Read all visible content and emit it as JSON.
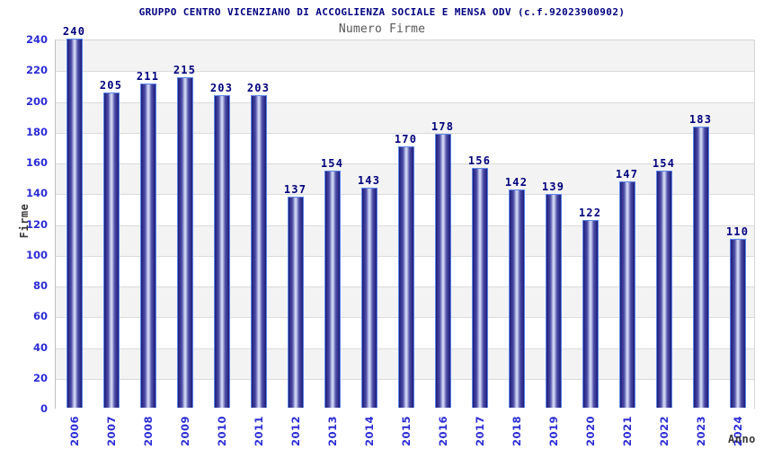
{
  "chart_data": {
    "type": "bar",
    "title": "GRUPPO CENTRO VICENZIANO DI ACCOGLIENZA SOCIALE E MENSA ODV (c.f.92023900902)",
    "subtitle": "Numero Firme",
    "xlabel": "Anno",
    "ylabel": "Firme",
    "categories": [
      "2006",
      "2007",
      "2008",
      "2009",
      "2010",
      "2011",
      "2012",
      "2013",
      "2014",
      "2015",
      "2016",
      "2017",
      "2018",
      "2019",
      "2020",
      "2021",
      "2022",
      "2023",
      "2024"
    ],
    "values": [
      240,
      205,
      211,
      215,
      203,
      203,
      137,
      154,
      143,
      170,
      178,
      156,
      142,
      139,
      122,
      147,
      154,
      183,
      110
    ],
    "ylim": [
      0,
      240
    ],
    "ytick_step": 20,
    "grid": "horizontal",
    "legend": "none",
    "colors": {
      "title": "#000080",
      "subtitle": "#565656",
      "axis_title": "#383838",
      "tick_label": "#2b2bd5",
      "value_label": "#00007e",
      "bar_edge_dark": "#1c1c78",
      "bar_mid": "#5050aa",
      "bar_center_light": "#ccd2f0",
      "bar_border": "#5b85ea",
      "band_gray": "#f3f3f3",
      "band_white": "#ffffff",
      "gridline": "#dadada",
      "plot_border": "#c0c0c0",
      "background": "#ffffff"
    }
  }
}
